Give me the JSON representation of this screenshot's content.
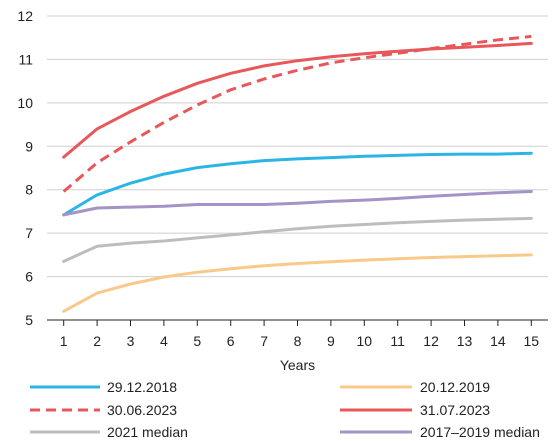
{
  "chart_data": {
    "type": "line",
    "title": "",
    "xlabel": "Years",
    "ylabel": "",
    "x": [
      1,
      2,
      3,
      4,
      5,
      6,
      7,
      8,
      9,
      10,
      11,
      12,
      13,
      14,
      15
    ],
    "xlim": [
      0.5,
      15.5
    ],
    "ylim": [
      5,
      12
    ],
    "yticks": [
      5,
      6,
      7,
      8,
      9,
      10,
      11,
      12
    ],
    "grid": "horizontal",
    "legend": "bottom",
    "series": [
      {
        "name": "29.12.2018",
        "color": "#2bb5e6",
        "dash": "solid",
        "values": [
          7.42,
          7.88,
          8.15,
          8.36,
          8.51,
          8.6,
          8.67,
          8.71,
          8.74,
          8.77,
          8.79,
          8.81,
          8.82,
          8.82,
          8.84
        ]
      },
      {
        "name": "20.12.2019",
        "color": "#f9c98a",
        "dash": "solid",
        "values": [
          5.2,
          5.62,
          5.83,
          5.99,
          6.1,
          6.18,
          6.25,
          6.3,
          6.34,
          6.38,
          6.41,
          6.44,
          6.46,
          6.48,
          6.5
        ]
      },
      {
        "name": "30.06.2023",
        "color": "#e8575a",
        "dash": "dashed",
        "values": [
          7.96,
          8.62,
          9.1,
          9.55,
          9.95,
          10.3,
          10.55,
          10.75,
          10.92,
          11.04,
          11.14,
          11.25,
          11.35,
          11.45,
          11.53
        ]
      },
      {
        "name": "31.07.2023",
        "color": "#e8575a",
        "dash": "solid",
        "values": [
          8.75,
          9.4,
          9.8,
          10.15,
          10.45,
          10.68,
          10.85,
          10.97,
          11.06,
          11.13,
          11.19,
          11.24,
          11.28,
          11.32,
          11.37
        ]
      },
      {
        "name": "2021 median",
        "color": "#bdbdbd",
        "dash": "solid",
        "values": [
          6.35,
          6.7,
          6.77,
          6.82,
          6.89,
          6.96,
          7.03,
          7.1,
          7.16,
          7.2,
          7.24,
          7.27,
          7.3,
          7.32,
          7.34
        ]
      },
      {
        "name": "2017–2019 median",
        "color": "#a493c6",
        "dash": "solid",
        "values": [
          7.42,
          7.58,
          7.6,
          7.62,
          7.66,
          7.66,
          7.66,
          7.69,
          7.73,
          7.76,
          7.8,
          7.85,
          7.89,
          7.93,
          7.96
        ]
      }
    ]
  }
}
